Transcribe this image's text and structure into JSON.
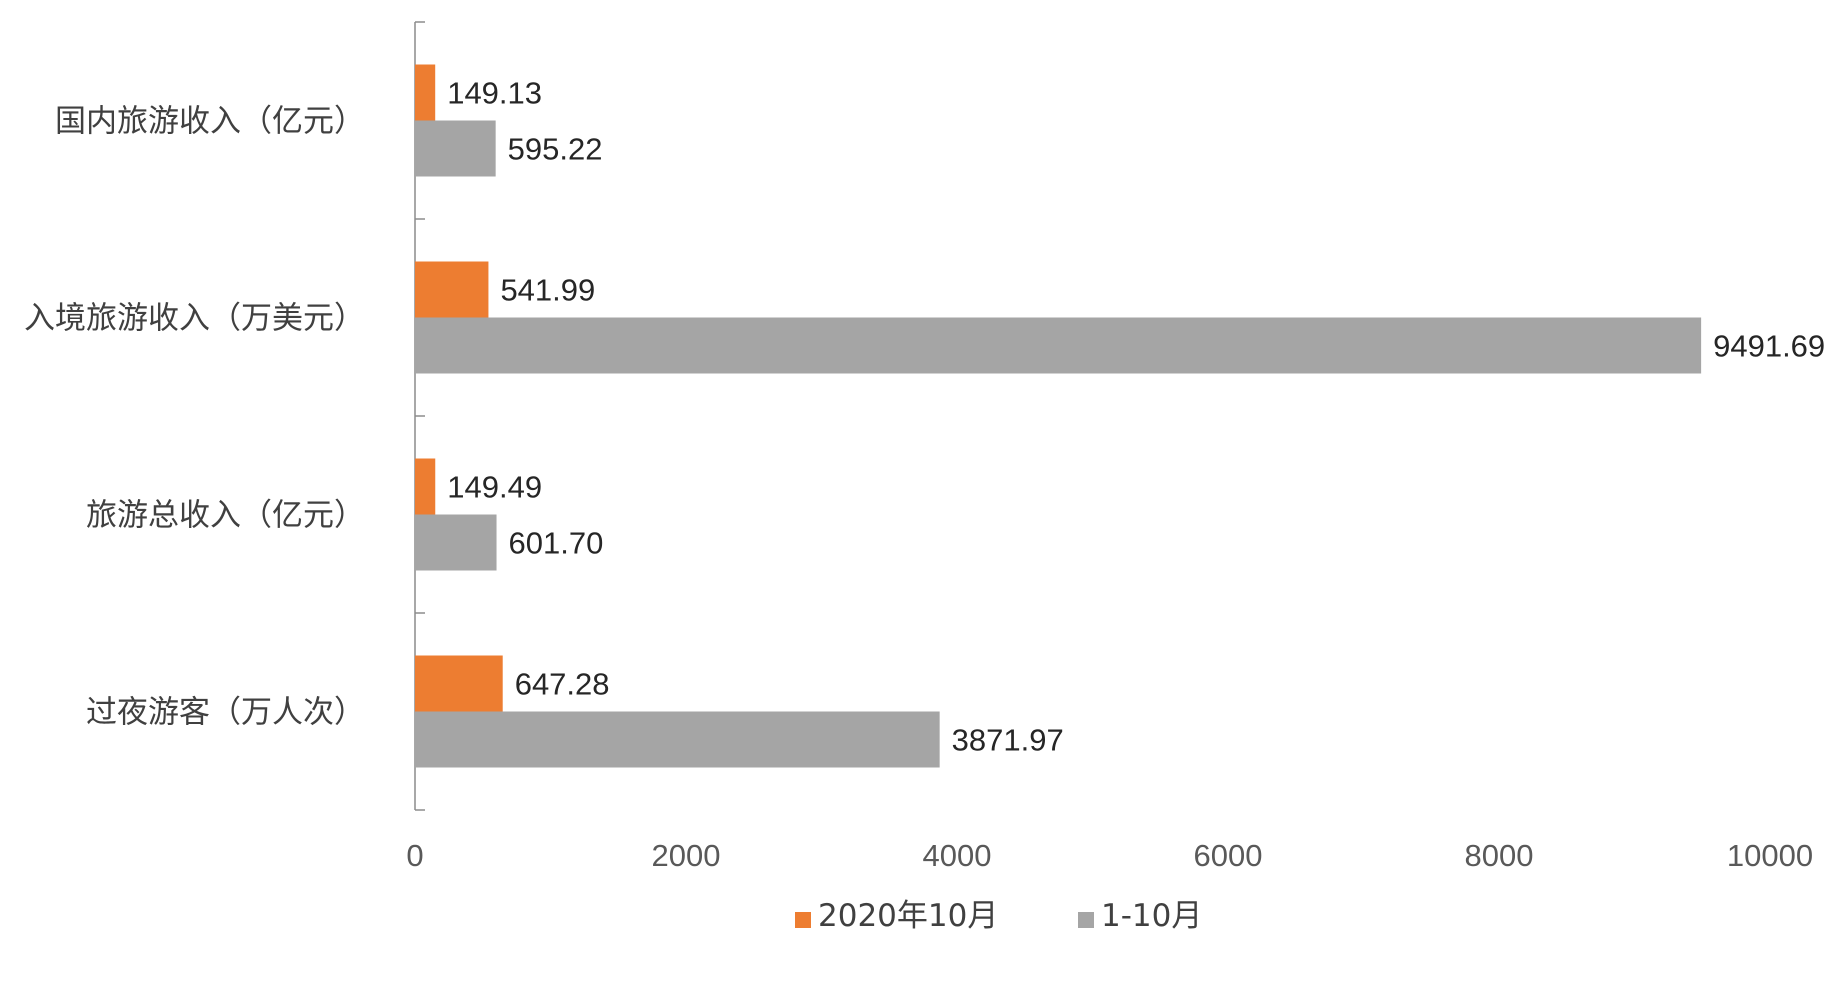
{
  "chart_data": {
    "type": "bar",
    "orientation": "horizontal",
    "categories": [
      "国内旅游收入（亿元）",
      "入境旅游收入（万美元）",
      "旅游总收入（亿元）",
      "过夜游客（万人次）"
    ],
    "series": [
      {
        "name": "2020年10月",
        "color": "#ED7D31",
        "values": [
          149.13,
          541.99,
          149.49,
          647.28
        ],
        "labels": [
          "149.13",
          "541.99",
          "149.49",
          "647.28"
        ]
      },
      {
        "name": "1-10月",
        "color": "#A5A5A5",
        "values": [
          595.22,
          9491.69,
          601.7,
          3871.97
        ],
        "labels": [
          "595.22",
          "9491.69",
          "601.70",
          "3871.97"
        ]
      }
    ],
    "xlim": [
      0,
      10000
    ],
    "xticks": [
      0,
      2000,
      4000,
      6000,
      8000,
      10000
    ],
    "grid": false,
    "legend_position": "bottom"
  }
}
